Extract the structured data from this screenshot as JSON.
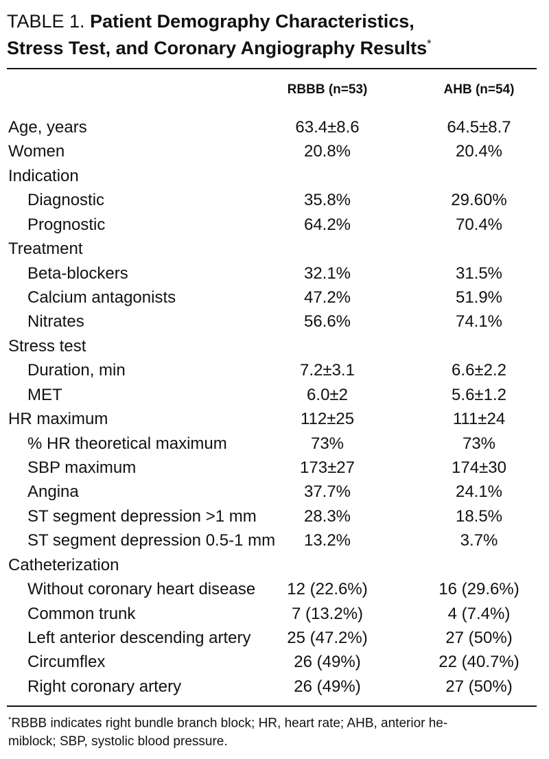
{
  "title": {
    "label": "TABLE 1.",
    "line1": "Patient Demography Characteristics,",
    "line2": "Stress Test, and Coronary Angiography Results",
    "marker": "*"
  },
  "table": {
    "columns": [
      "RBBB (n=53)",
      "AHB (n=54)"
    ],
    "rows": [
      {
        "label": "Age, years",
        "level": 0,
        "values": [
          "63.4±8.6",
          "64.5±8.7"
        ]
      },
      {
        "label": "Women",
        "level": 0,
        "values": [
          "20.8%",
          "20.4%"
        ]
      },
      {
        "label": "Indication",
        "level": 0
      },
      {
        "label": "Diagnostic",
        "level": 1,
        "values": [
          "35.8%",
          "29.60%"
        ]
      },
      {
        "label": "Prognostic",
        "level": 1,
        "values": [
          "64.2%",
          "70.4%"
        ]
      },
      {
        "label": "Treatment",
        "level": 0
      },
      {
        "label": "Beta-blockers",
        "level": 1,
        "values": [
          "32.1%",
          "31.5%"
        ]
      },
      {
        "label": "Calcium antagonists",
        "level": 1,
        "values": [
          "47.2%",
          "51.9%"
        ]
      },
      {
        "label": "Nitrates",
        "level": 1,
        "values": [
          "56.6%",
          "74.1%"
        ]
      },
      {
        "label": "Stress test",
        "level": 0
      },
      {
        "label": "Duration, min",
        "level": 1,
        "values": [
          "7.2±3.1",
          "6.6±2.2"
        ]
      },
      {
        "label": "MET",
        "level": 1,
        "values": [
          "6.0±2",
          "5.6±1.2"
        ]
      },
      {
        "label": "HR maximum",
        "level": 0,
        "values": [
          "112±25",
          "111±24"
        ]
      },
      {
        "label": "% HR theoretical maximum",
        "level": 1,
        "values": [
          "73%",
          "73%"
        ]
      },
      {
        "label": "SBP maximum",
        "level": 1,
        "values": [
          "173±27",
          "174±30"
        ]
      },
      {
        "label": "Angina",
        "level": 1,
        "values": [
          "37.7%",
          "24.1%"
        ]
      },
      {
        "label": "ST segment depression >1 mm",
        "level": 1,
        "values": [
          "28.3%",
          "18.5%"
        ]
      },
      {
        "label": "ST segment depression 0.5-1 mm",
        "level": 1,
        "values": [
          "13.2%",
          "3.7%"
        ]
      },
      {
        "label": "Catheterization",
        "level": 0
      },
      {
        "label": "Without coronary heart disease",
        "level": 1,
        "values": [
          "12 (22.6%)",
          "16 (29.6%)"
        ]
      },
      {
        "label": "Common trunk",
        "level": 1,
        "values": [
          "7 (13.2%)",
          "4 (7.4%)"
        ]
      },
      {
        "label": "Left anterior descending artery",
        "level": 1,
        "values": [
          "25 (47.2%)",
          "27 (50%)"
        ]
      },
      {
        "label": "Circumflex",
        "level": 1,
        "values": [
          "26 (49%)",
          "22 (40.7%)"
        ]
      },
      {
        "label": "Right coronary artery",
        "level": 1,
        "values": [
          "26 (49%)",
          "27 (50%)"
        ]
      }
    ]
  },
  "footnote": {
    "marker": "*",
    "lines": [
      "RBBB indicates right bundle branch block; HR, heart rate; AHB, anterior he-",
      "miblock; SBP, systolic blood pressure."
    ]
  }
}
